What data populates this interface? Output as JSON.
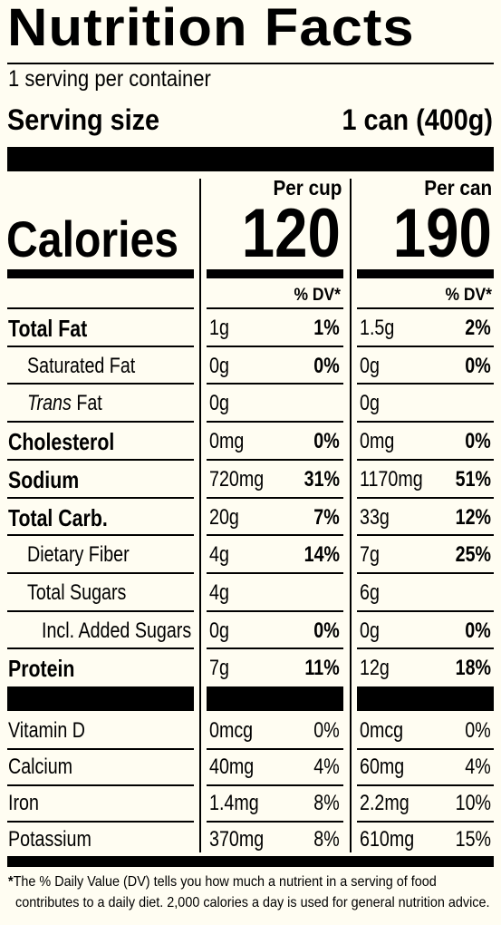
{
  "title": "Nutrition Facts",
  "servings": "1 serving per container",
  "serving_size_label": "Serving size",
  "serving_size_value": "1 can (400g)",
  "columns": [
    "Per cup",
    "Per can"
  ],
  "calories_label": "Calories",
  "calories": [
    "120",
    "190"
  ],
  "dv_header": "% DV*",
  "nutrients": [
    {
      "label": "Total Fat",
      "bold": true,
      "indent": 0,
      "cup_amt": "1g",
      "cup_dv": "1%",
      "can_amt": "1.5g",
      "can_dv": "2%"
    },
    {
      "label": "Saturated Fat",
      "bold": false,
      "indent": 1,
      "cup_amt": "0g",
      "cup_dv": "0%",
      "can_amt": "0g",
      "can_dv": "0%"
    },
    {
      "label": "Trans Fat",
      "bold": false,
      "indent": 1,
      "italic_prefix": "Trans",
      "suffix": " Fat",
      "cup_amt": "0g",
      "cup_dv": "",
      "can_amt": "0g",
      "can_dv": ""
    },
    {
      "label": "Cholesterol",
      "bold": true,
      "indent": 0,
      "cup_amt": "0mg",
      "cup_dv": "0%",
      "can_amt": "0mg",
      "can_dv": "0%"
    },
    {
      "label": "Sodium",
      "bold": true,
      "indent": 0,
      "cup_amt": "720mg",
      "cup_dv": "31%",
      "can_amt": "1170mg",
      "can_dv": "51%"
    },
    {
      "label": "Total Carb.",
      "bold": true,
      "indent": 0,
      "cup_amt": "20g",
      "cup_dv": "7%",
      "can_amt": "33g",
      "can_dv": "12%"
    },
    {
      "label": "Dietary Fiber",
      "bold": false,
      "indent": 1,
      "cup_amt": "4g",
      "cup_dv": "14%",
      "can_amt": "7g",
      "can_dv": "25%"
    },
    {
      "label": "Total Sugars",
      "bold": false,
      "indent": 1,
      "cup_amt": "4g",
      "cup_dv": "",
      "can_amt": "6g",
      "can_dv": ""
    },
    {
      "label": "Incl. Added Sugars",
      "bold": false,
      "indent": 2,
      "cup_amt": "0g",
      "cup_dv": "0%",
      "can_amt": "0g",
      "can_dv": "0%"
    },
    {
      "label": "Protein",
      "bold": true,
      "indent": 0,
      "cup_amt": "7g",
      "cup_dv": "11%",
      "can_amt": "12g",
      "can_dv": "18%"
    }
  ],
  "vitamins": [
    {
      "label": "Vitamin D",
      "cup_amt": "0mcg",
      "cup_dv": "0%",
      "can_amt": "0mcg",
      "can_dv": "0%"
    },
    {
      "label": "Calcium",
      "cup_amt": "40mg",
      "cup_dv": "4%",
      "can_amt": "60mg",
      "can_dv": "4%"
    },
    {
      "label": "Iron",
      "cup_amt": "1.4mg",
      "cup_dv": "8%",
      "can_amt": "2.2mg",
      "can_dv": "10%"
    },
    {
      "label": "Potassium",
      "cup_amt": "370mg",
      "cup_dv": "8%",
      "can_amt": "610mg",
      "can_dv": "15%"
    }
  ],
  "footnote_line1": "*The % Daily Value (DV) tells you how much a nutrient in a serving of food",
  "footnote_line2": "contributes to a daily diet. 2,000 calories a day is used for general nutrition advice."
}
